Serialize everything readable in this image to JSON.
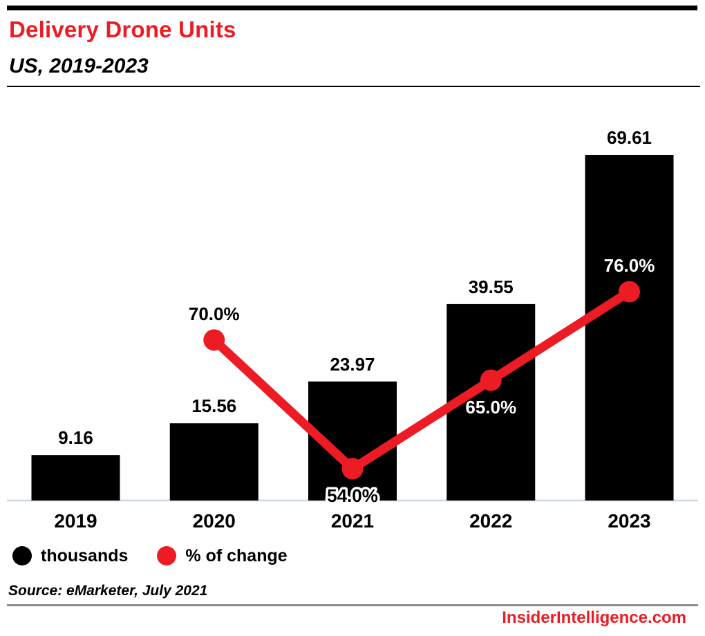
{
  "header": {
    "title": "Delivery Drone Units",
    "subtitle": "US, 2019-2023"
  },
  "legend": {
    "items": [
      {
        "label": "thousands",
        "color": "#000000"
      },
      {
        "label": "% of change",
        "color": "#ed1c24"
      }
    ]
  },
  "source_note": "Source: eMarketer, July 2021",
  "footer": {
    "site": "InsiderIntelligence.com"
  },
  "colors": {
    "accent_red": "#ed1c24",
    "bar_black": "#000000",
    "axis_line": "#ccd6e4",
    "divider_gray": "#8c8c8c",
    "label_light": "#ffffff",
    "label_dark": "#000000"
  },
  "chart_data": {
    "type": "bar",
    "title": "Delivery Drone Units",
    "subtitle": "US, 2019-2023",
    "categories": [
      "2019",
      "2020",
      "2021",
      "2022",
      "2023"
    ],
    "series": [
      {
        "name": "thousands",
        "type": "bar",
        "color": "#000000",
        "values": [
          9.16,
          15.56,
          23.97,
          39.55,
          69.61
        ],
        "labels": [
          "9.16",
          "15.56",
          "23.97",
          "39.55",
          "69.61"
        ]
      },
      {
        "name": "% of change",
        "type": "line",
        "color": "#ed1c24",
        "values": [
          null,
          70.0,
          54.0,
          65.0,
          76.0
        ],
        "point_labels": [
          null,
          {
            "text": "70.0%",
            "position": "above",
            "style": "dark"
          },
          {
            "text": "54.0%",
            "position": "below",
            "style": "dark-outline"
          },
          {
            "text": "65.0%",
            "position": "below",
            "style": "light"
          },
          {
            "text": "76.0%",
            "position": "above",
            "style": "light"
          }
        ]
      }
    ],
    "xlabel": "",
    "ylabel": "",
    "ylim": [
      0,
      73
    ],
    "grid": false,
    "y_axis_ticks": "none",
    "legend_position": "bottom-left"
  }
}
